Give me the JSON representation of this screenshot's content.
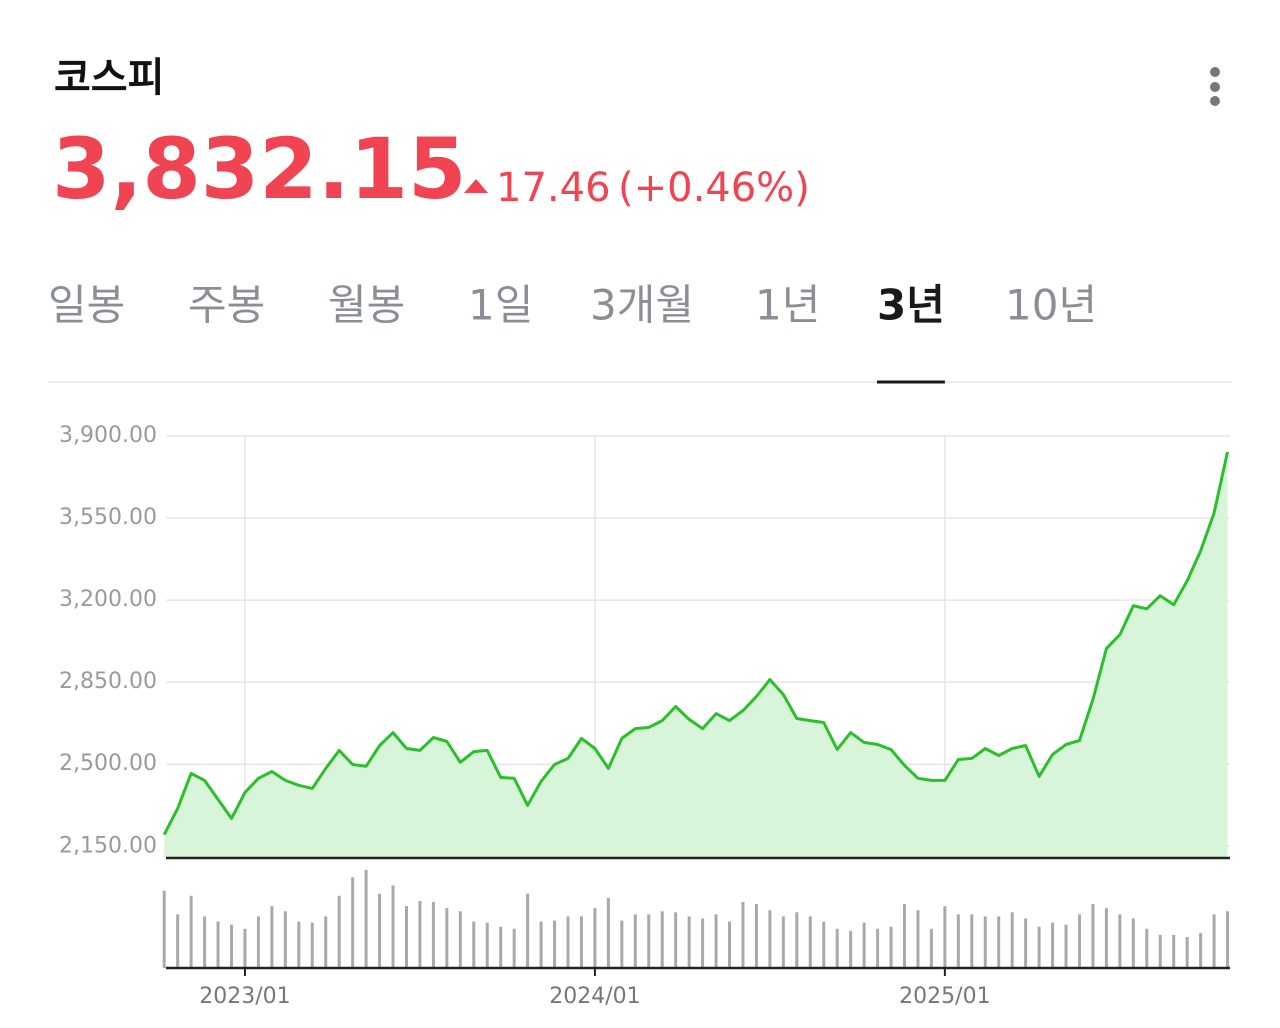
{
  "header": {
    "title": "코스피",
    "price": "3,832.15",
    "change": "17.46",
    "change_percent": "(+0.46%)"
  },
  "tabs": [
    "일봉",
    "주봉",
    "월봉",
    "1일",
    "3개월",
    "1년",
    "3년",
    "10년"
  ],
  "selected_tab": 6,
  "chart_data": {
    "type": "line",
    "categories": [
      null,
      null,
      null,
      null,
      null,
      null,
      "2023/01",
      null,
      null,
      null,
      null,
      null,
      null,
      null,
      null,
      null,
      null,
      null,
      null,
      null,
      null,
      null,
      null,
      null,
      null,
      null,
      null,
      null,
      null,
      null,
      null,
      null,
      "2024/01",
      null,
      null,
      null,
      null,
      null,
      null,
      null,
      null,
      null,
      null,
      null,
      null,
      null,
      null,
      null,
      null,
      null,
      null,
      null,
      null,
      null,
      null,
      null,
      null,
      null,
      "2025/01",
      null,
      null,
      null,
      null,
      null,
      null,
      null,
      null,
      null,
      null,
      null,
      null,
      null,
      null,
      null,
      null,
      null,
      null,
      null,
      null,
      null
    ],
    "values": [
      2200,
      2312,
      2461,
      2431,
      2350,
      2269,
      2380,
      2440,
      2469,
      2431,
      2410,
      2397,
      2482,
      2559,
      2499,
      2491,
      2580,
      2635,
      2567,
      2559,
      2614,
      2597,
      2508,
      2554,
      2559,
      2444,
      2440,
      2325,
      2427,
      2499,
      2525,
      2610,
      2567,
      2482,
      2610,
      2652,
      2657,
      2686,
      2746,
      2691,
      2652,
      2716,
      2686,
      2729,
      2789,
      2861,
      2797,
      2695,
      2686,
      2678,
      2563,
      2635,
      2593,
      2584,
      2563,
      2495,
      2440,
      2431,
      2431,
      2520,
      2525,
      2567,
      2537,
      2567,
      2580,
      2448,
      2542,
      2584,
      2601,
      2776,
      2993,
      3053,
      3176,
      3163,
      3219,
      3180,
      3283,
      3410,
      3572,
      3832
    ],
    "color": "#2bbf2b",
    "fill_color": "#d8f5da",
    "ylim": [
      2100,
      3900
    ],
    "yticks": [
      {
        "value": 2150,
        "label": "2,150.00"
      },
      {
        "value": 2500,
        "label": "2,500.00"
      },
      {
        "value": 2850,
        "label": "2,850.00"
      },
      {
        "value": 3200,
        "label": "3,200.00"
      },
      {
        "value": 3550,
        "label": "3,550.00"
      },
      {
        "value": 3900,
        "label": "3,900.00"
      }
    ],
    "grid": true,
    "volume": {
      "color": "#a9a9a9",
      "values": [
        75,
        52,
        70,
        50,
        45,
        42,
        38,
        50,
        60,
        55,
        45,
        44,
        50,
        70,
        88,
        95,
        72,
        80,
        60,
        65,
        64,
        58,
        55,
        45,
        44,
        40,
        38,
        72,
        45,
        46,
        50,
        50,
        58,
        68,
        46,
        52,
        52,
        55,
        54,
        50,
        48,
        52,
        45,
        64,
        62,
        56,
        50,
        54,
        50,
        45,
        38,
        36,
        44,
        38,
        40,
        62,
        56,
        38,
        60,
        52,
        52,
        50,
        50,
        54,
        48,
        40,
        44,
        42,
        52,
        62,
        58,
        52,
        48,
        38,
        32,
        32,
        30,
        34,
        52,
        55
      ]
    }
  }
}
